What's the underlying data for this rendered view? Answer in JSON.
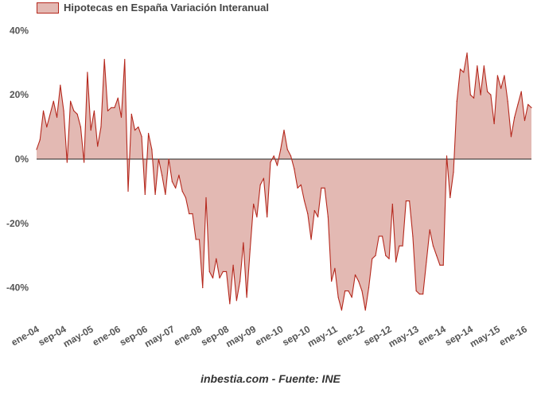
{
  "chart_data": {
    "type": "area",
    "legend": [
      {
        "label": "Hipotecas en España Variación Interanual",
        "position": "top-left"
      }
    ],
    "source": "inbestia.com - Fuente: INE",
    "colors": {
      "fill": "#e3b9b3",
      "line": "#b5281d",
      "zero_line": "#222222"
    },
    "ylim": [
      -50,
      40
    ],
    "y_ticks": [
      "40%",
      "20%",
      "0%",
      "-20%",
      "-40%"
    ],
    "y_tick_values": [
      40,
      20,
      0,
      -20,
      -40
    ],
    "x_tick_labels": [
      "ene-04",
      "sep-04",
      "may-05",
      "ene-06",
      "sep-06",
      "may-07",
      "ene-08",
      "sep-08",
      "may-09",
      "ene-10",
      "sep-10",
      "may-11",
      "ene-12",
      "sep-12",
      "may-13",
      "ene-14",
      "sep-14",
      "may-15",
      "ene-16"
    ],
    "x_tick_indices": [
      0,
      8,
      16,
      24,
      32,
      40,
      48,
      56,
      64,
      72,
      80,
      88,
      96,
      104,
      112,
      120,
      128,
      136,
      144
    ],
    "x_start": "ene-04",
    "series": [
      {
        "values": [
          3,
          6,
          15,
          10,
          14,
          18,
          13,
          23,
          15,
          -1,
          18,
          15,
          14,
          10,
          -1,
          27,
          9,
          15,
          4,
          10,
          31,
          15,
          16,
          16,
          19,
          13,
          31,
          -10,
          14,
          9,
          10,
          7,
          -11,
          8,
          3,
          -11,
          0,
          -5,
          -11,
          0,
          -7,
          -9,
          -5,
          -10,
          -12,
          -17,
          -17,
          -25,
          -25,
          -40,
          -12,
          -35,
          -37,
          -31,
          -37,
          -35,
          -35,
          -45,
          -33,
          -44,
          -38,
          -26,
          -43,
          -28,
          -14,
          -18,
          -8,
          -6,
          -18,
          -1,
          1,
          -2,
          3,
          9,
          3,
          1,
          -3,
          -9,
          -8,
          -13,
          -17,
          -25,
          -16,
          -18,
          -9,
          -9,
          -18,
          -38,
          -34,
          -43,
          -47,
          -41,
          -41,
          -43,
          -36,
          -38,
          -41,
          -47,
          -40,
          -31,
          -30,
          -24,
          -24,
          -30,
          -31,
          -14,
          -32,
          -27,
          -27,
          -13,
          -13,
          -24,
          -41,
          -42,
          -42,
          -32,
          -22,
          -27,
          -30,
          -33,
          -33,
          1,
          -12,
          -4,
          18,
          28,
          27,
          33,
          20,
          19,
          29,
          20,
          29,
          21,
          20,
          11,
          26,
          22,
          26,
          18,
          7,
          13,
          17,
          21,
          12,
          17,
          16
        ]
      }
    ]
  }
}
